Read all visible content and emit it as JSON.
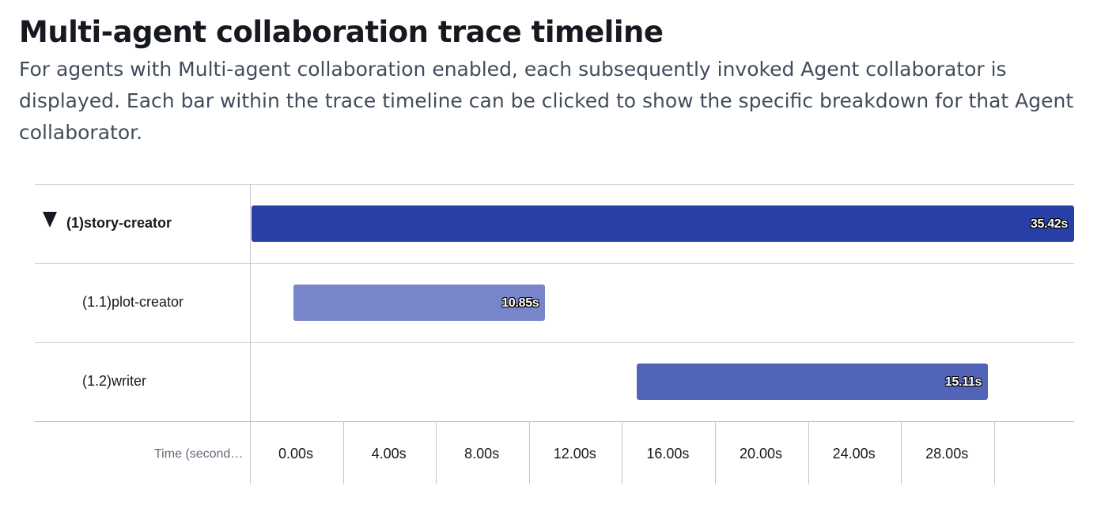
{
  "header": {
    "title": "Multi-agent collaboration trace timeline",
    "description": "For agents with Multi-agent collaboration enabled, each subsequently invoked Agent collaborator is displayed. Each bar within the trace timeline can be clicked to show the specific breakdown for that Agent collaborator."
  },
  "timeline": {
    "rows": [
      {
        "label": "(1)story-creator",
        "duration_label": "35.42s",
        "start_s": 0,
        "end_s": 35.42,
        "color": "#283fa8",
        "expanded": true
      },
      {
        "label": "(1.1)plot-creator",
        "duration_label": "10.85s",
        "start_s": 1.8,
        "end_s": 12.65,
        "color": "#7885cb"
      },
      {
        "label": "(1.2)writer",
        "duration_label": "15.11s",
        "start_s": 16.6,
        "end_s": 31.71,
        "color": "#5264b8"
      }
    ],
    "axis": {
      "title": "Time (second…",
      "ticks": [
        "0.00s",
        "4.00s",
        "8.00s",
        "12.00s",
        "16.00s",
        "20.00s",
        "24.00s",
        "28.00s"
      ],
      "tick_values": [
        0,
        4,
        8,
        12,
        16,
        20,
        24,
        28
      ],
      "range": [
        0,
        35.42
      ]
    }
  }
}
